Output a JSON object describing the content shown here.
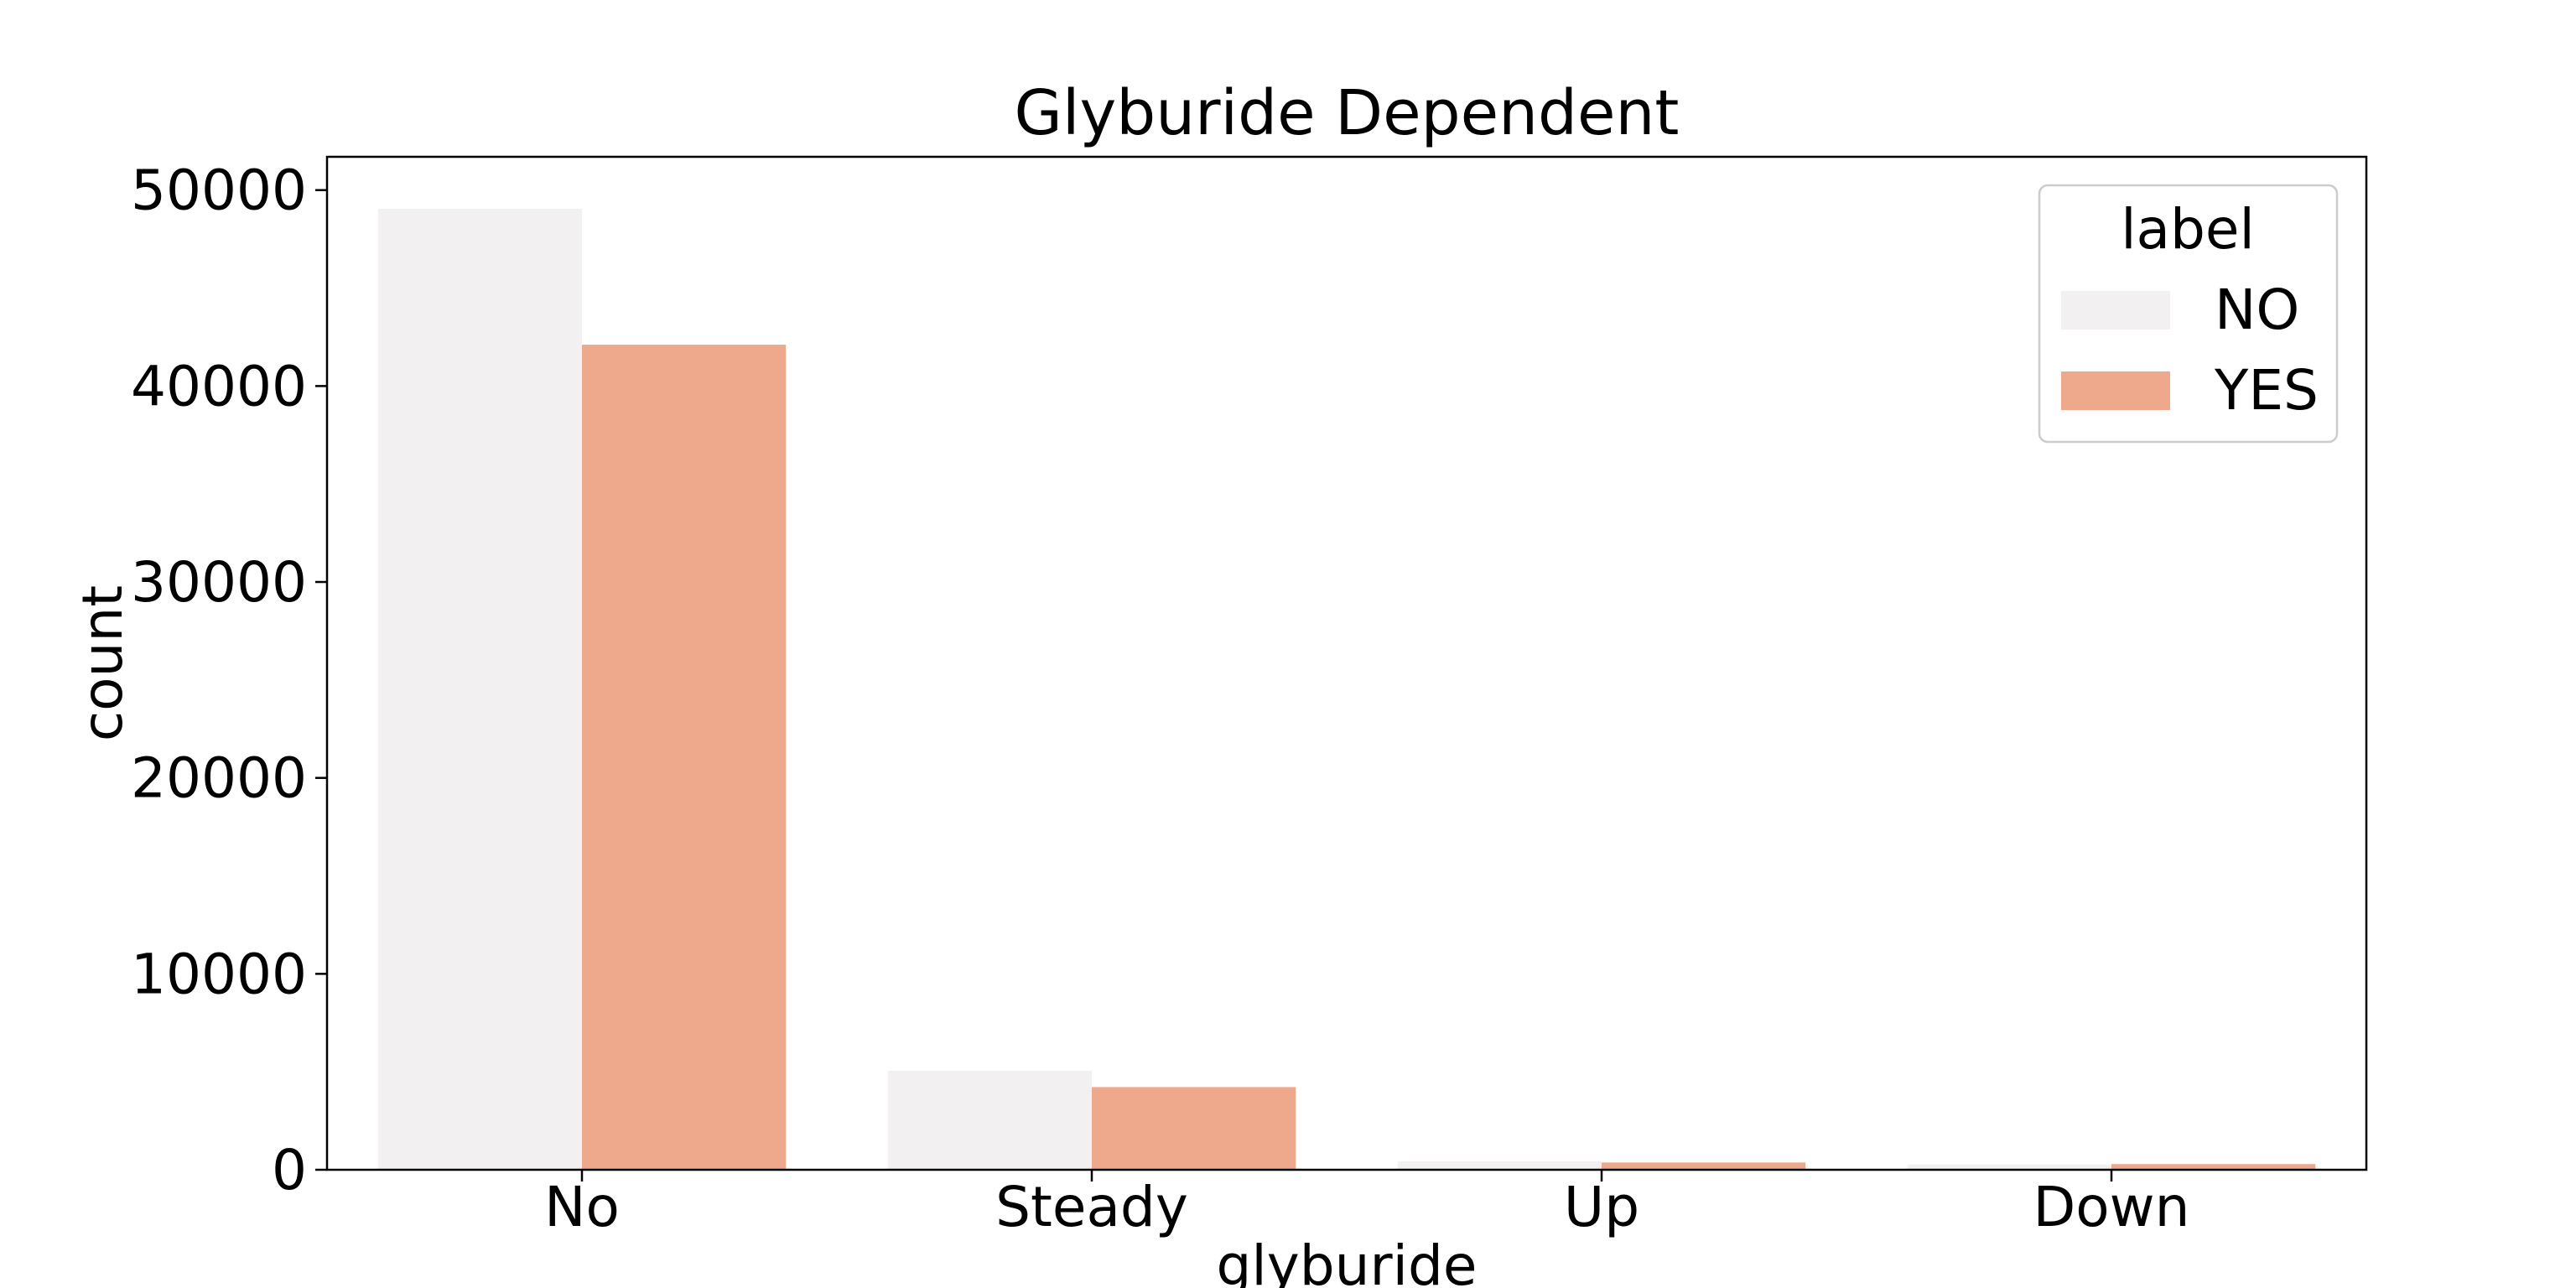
{
  "chart_data": {
    "type": "bar",
    "title": "Glyburide Dependent",
    "xlabel": "glyburide",
    "ylabel": "count",
    "categories": [
      "No",
      "Steady",
      "Up",
      "Down"
    ],
    "series": [
      {
        "name": "NO",
        "color": "#f2f0f1",
        "values": [
          49050,
          5050,
          440,
          270
        ]
      },
      {
        "name": "YES",
        "color": "#eea88b",
        "values": [
          42110,
          4220,
          370,
          290
        ]
      }
    ],
    "ylim": [
      0,
      51700
    ],
    "yticks": [
      0,
      10000,
      20000,
      30000,
      40000,
      50000
    ],
    "grid": false,
    "legend": {
      "title": "label",
      "placement": "top-right"
    }
  }
}
